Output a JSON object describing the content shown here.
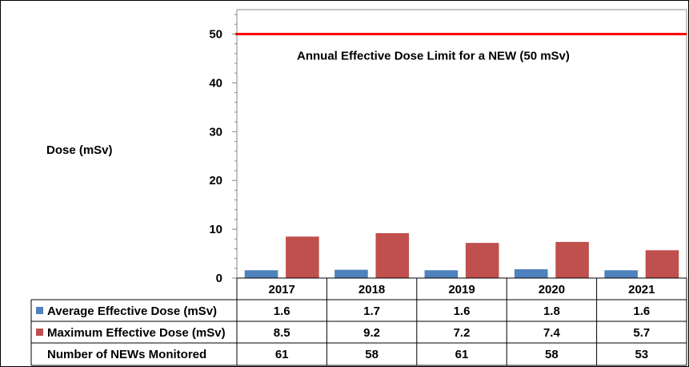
{
  "chart_data": {
    "type": "bar",
    "categories": [
      "2017",
      "2018",
      "2019",
      "2020",
      "2021"
    ],
    "series": [
      {
        "name": "Average Effective Dose (mSv)",
        "color": "#4f81bd",
        "values": [
          1.6,
          1.7,
          1.6,
          1.8,
          1.6
        ]
      },
      {
        "name": "Maximum Effective Dose (mSv)",
        "color": "#c0504d",
        "values": [
          8.5,
          9.2,
          7.2,
          7.4,
          5.7
        ]
      }
    ],
    "table_extra_row": {
      "name": "Number of NEWs Monitored",
      "values": [
        "61",
        "58",
        "61",
        "58",
        "53"
      ]
    },
    "ylabel": "Dose (mSv)",
    "ylim": [
      0,
      55
    ],
    "yticks": [
      0,
      10,
      20,
      30,
      40,
      50
    ],
    "reference_line": {
      "value": 50,
      "label": "Annual Effective Dose Limit for a NEW (50 mSv)",
      "color": "#ff0000"
    },
    "legend": "data-table"
  }
}
